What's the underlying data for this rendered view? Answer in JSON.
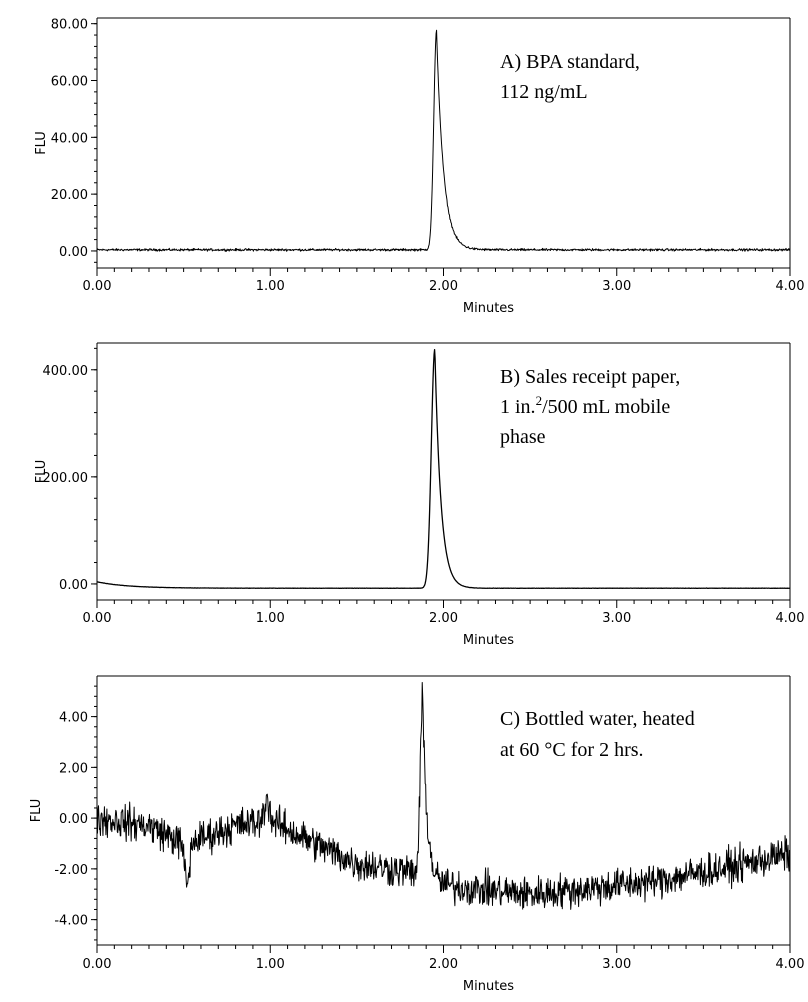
{
  "chart_data": [
    {
      "type": "line",
      "panel_id": "A",
      "xlabel": "Minutes",
      "ylabel": "FLU",
      "xlim": [
        0.0,
        4.0
      ],
      "ylim": [
        -6.0,
        82.0
      ],
      "x_ticks": [
        "0.00",
        "1.00",
        "2.00",
        "3.00",
        "4.00"
      ],
      "y_ticks": [
        "0.00",
        "20.00",
        "40.00",
        "60.00",
        "80.00"
      ],
      "y_tick_values": [
        0,
        20,
        40,
        60,
        80
      ],
      "annotation": [
        "A)  BPA standard,",
        "112 ng/mL"
      ],
      "baseline": 0.4,
      "peak": {
        "x": 1.96,
        "height": 77.0,
        "sigma_left": 0.016,
        "tau_right": 0.04
      },
      "noise_amplitude": 0.6,
      "grid": false
    },
    {
      "type": "line",
      "panel_id": "B",
      "xlabel": "Minutes",
      "ylabel": "FLU",
      "xlim": [
        0.0,
        4.0
      ],
      "ylim": [
        -30.0,
        450.0
      ],
      "x_ticks": [
        "0.00",
        "1.00",
        "2.00",
        "3.00",
        "4.00"
      ],
      "y_ticks": [
        "0.00",
        "200.00",
        "400.00"
      ],
      "y_tick_values": [
        0,
        200,
        400
      ],
      "annotation_parts": {
        "line1": "B)  Sales receipt paper,",
        "line2_pre": "1 in.",
        "line2_sup": "2",
        "line2_post": "/500 mL mobile",
        "line3": "phase"
      },
      "baseline": -8.0,
      "start_offset": 12.0,
      "peak": {
        "x": 1.95,
        "height": 447.0,
        "sigma_left": 0.02,
        "tau_right": 0.035
      },
      "noise_amplitude": 0.4,
      "grid": false
    },
    {
      "type": "line",
      "panel_id": "C",
      "xlabel": "Minutes",
      "ylabel": "FLU",
      "xlim": [
        0.0,
        4.0
      ],
      "ylim": [
        -5.0,
        5.6
      ],
      "x_ticks": [
        "0.00",
        "1.00",
        "2.00",
        "3.00",
        "4.00"
      ],
      "y_ticks": [
        "4.00",
        "2.00",
        "0.00",
        "-2.00",
        "-4.00"
      ],
      "y_tick_values": [
        4,
        2,
        0,
        -2,
        -4
      ],
      "annotation": [
        "C) Bottled water, heated",
        "at 60 °C for 2 hrs."
      ],
      "baseline_points": [
        [
          0.0,
          0.0
        ],
        [
          0.3,
          -0.3
        ],
        [
          0.5,
          -1.0
        ],
        [
          0.6,
          -0.8
        ],
        [
          0.8,
          -0.3
        ],
        [
          1.0,
          -0.1
        ],
        [
          1.2,
          -0.8
        ],
        [
          1.5,
          -1.8
        ],
        [
          1.8,
          -2.1
        ],
        [
          1.95,
          -2.6
        ],
        [
          2.2,
          -2.8
        ],
        [
          2.5,
          -3.0
        ],
        [
          2.8,
          -2.8
        ],
        [
          3.2,
          -2.5
        ],
        [
          3.6,
          -2.0
        ],
        [
          4.0,
          -1.4
        ]
      ],
      "dips": [
        {
          "x": 0.52,
          "depth": -1.6
        },
        {
          "x": 0.98,
          "depth": 0.9
        }
      ],
      "peak": {
        "x": 1.88,
        "height": 7.0,
        "sigma_left": 0.014,
        "tau_right": 0.025
      },
      "noise_amplitude": 1.0,
      "grid": false
    }
  ]
}
